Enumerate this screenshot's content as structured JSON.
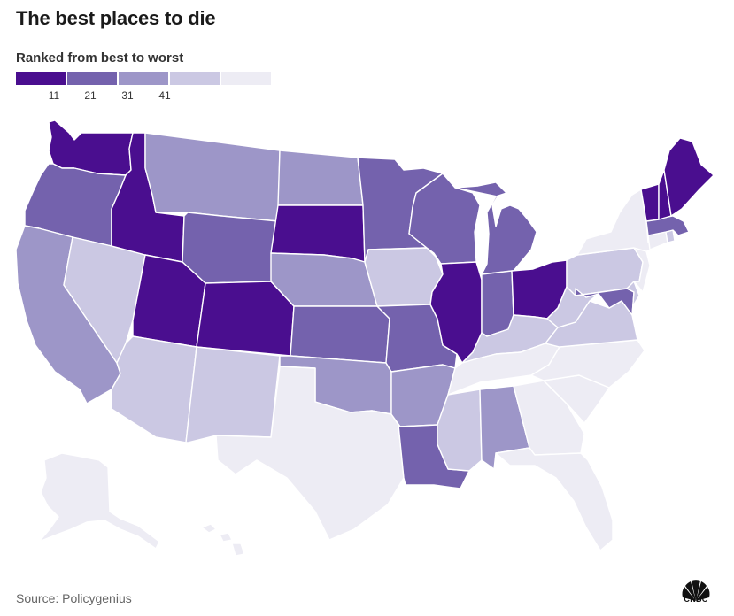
{
  "title": "The best places to die",
  "subtitle": "Ranked from best to worst",
  "legend": {
    "bins": [
      {
        "color": "#4a0e8f"
      },
      {
        "color": "#7462ad"
      },
      {
        "color": "#9d96c8"
      },
      {
        "color": "#cbc8e3"
      },
      {
        "color": "#edecf4"
      }
    ],
    "ticks": [
      "11",
      "21",
      "31",
      "41"
    ]
  },
  "source": "Source: Policygenius",
  "logo_text": "CNBC",
  "outline_color": "#ffffff",
  "states": [
    {
      "id": "WA",
      "name": "Washington",
      "color": "#4a0e8f"
    },
    {
      "id": "OR",
      "name": "Oregon",
      "color": "#7462ad"
    },
    {
      "id": "CA",
      "name": "California",
      "color": "#9d96c8"
    },
    {
      "id": "NV",
      "name": "Nevada",
      "color": "#cbc8e3"
    },
    {
      "id": "ID",
      "name": "Idaho",
      "color": "#4a0e8f"
    },
    {
      "id": "MT",
      "name": "Montana",
      "color": "#9d96c8"
    },
    {
      "id": "WY",
      "name": "Wyoming",
      "color": "#7462ad"
    },
    {
      "id": "UT",
      "name": "Utah",
      "color": "#4a0e8f"
    },
    {
      "id": "AZ",
      "name": "Arizona",
      "color": "#cbc8e3"
    },
    {
      "id": "CO",
      "name": "Colorado",
      "color": "#4a0e8f"
    },
    {
      "id": "NM",
      "name": "New Mexico",
      "color": "#cbc8e3"
    },
    {
      "id": "ND",
      "name": "North Dakota",
      "color": "#9d96c8"
    },
    {
      "id": "SD",
      "name": "South Dakota",
      "color": "#4a0e8f"
    },
    {
      "id": "NE",
      "name": "Nebraska",
      "color": "#9d96c8"
    },
    {
      "id": "KS",
      "name": "Kansas",
      "color": "#7462ad"
    },
    {
      "id": "OK",
      "name": "Oklahoma",
      "color": "#9d96c8"
    },
    {
      "id": "TX",
      "name": "Texas",
      "color": "#edecf4"
    },
    {
      "id": "MN",
      "name": "Minnesota",
      "color": "#7462ad"
    },
    {
      "id": "IA",
      "name": "Iowa",
      "color": "#cbc8e3"
    },
    {
      "id": "MO",
      "name": "Missouri",
      "color": "#7462ad"
    },
    {
      "id": "AR",
      "name": "Arkansas",
      "color": "#9d96c8"
    },
    {
      "id": "LA",
      "name": "Louisiana",
      "color": "#7462ad"
    },
    {
      "id": "WI",
      "name": "Wisconsin",
      "color": "#7462ad"
    },
    {
      "id": "IL",
      "name": "Illinois",
      "color": "#4a0e8f"
    },
    {
      "id": "MI",
      "name": "Michigan",
      "color": "#7462ad"
    },
    {
      "id": "IN",
      "name": "Indiana",
      "color": "#7462ad"
    },
    {
      "id": "OH",
      "name": "Ohio",
      "color": "#4a0e8f"
    },
    {
      "id": "KY",
      "name": "Kentucky",
      "color": "#cbc8e3"
    },
    {
      "id": "TN",
      "name": "Tennessee",
      "color": "#edecf4"
    },
    {
      "id": "MS",
      "name": "Mississippi",
      "color": "#cbc8e3"
    },
    {
      "id": "AL",
      "name": "Alabama",
      "color": "#9d96c8"
    },
    {
      "id": "GA",
      "name": "Georgia",
      "color": "#edecf4"
    },
    {
      "id": "FL",
      "name": "Florida",
      "color": "#edecf4"
    },
    {
      "id": "SC",
      "name": "South Carolina",
      "color": "#edecf4"
    },
    {
      "id": "NC",
      "name": "North Carolina",
      "color": "#edecf4"
    },
    {
      "id": "VA",
      "name": "Virginia",
      "color": "#cbc8e3"
    },
    {
      "id": "WV",
      "name": "West Virginia",
      "color": "#cbc8e3"
    },
    {
      "id": "PA",
      "name": "Pennsylvania",
      "color": "#cbc8e3"
    },
    {
      "id": "NY",
      "name": "New York",
      "color": "#edecf4"
    },
    {
      "id": "MD",
      "name": "Maryland",
      "color": "#7462ad"
    },
    {
      "id": "DE",
      "name": "Delaware",
      "color": "#cbc8e3"
    },
    {
      "id": "NJ",
      "name": "New Jersey",
      "color": "#edecf4"
    },
    {
      "id": "CT",
      "name": "Connecticut",
      "color": "#edecf4"
    },
    {
      "id": "RI",
      "name": "Rhode Island",
      "color": "#cbc8e3"
    },
    {
      "id": "MA",
      "name": "Massachusetts",
      "color": "#7462ad"
    },
    {
      "id": "VT",
      "name": "Vermont",
      "color": "#4a0e8f"
    },
    {
      "id": "NH",
      "name": "New Hampshire",
      "color": "#4a0e8f"
    },
    {
      "id": "ME",
      "name": "Maine",
      "color": "#4a0e8f"
    },
    {
      "id": "AK",
      "name": "Alaska",
      "color": "#edecf4"
    },
    {
      "id": "HI",
      "name": "Hawaii",
      "color": "#edecf4"
    }
  ]
}
